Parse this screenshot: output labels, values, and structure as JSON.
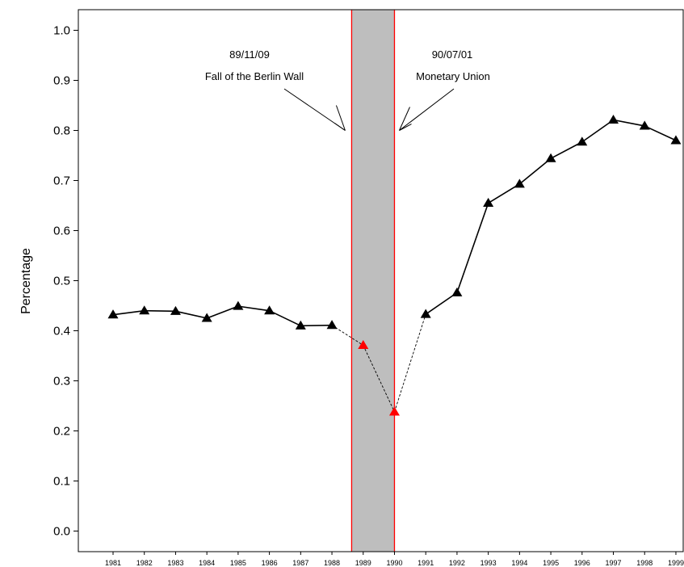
{
  "chart_data": {
    "type": "line",
    "title": "",
    "xlabel": "",
    "ylabel": "Percentage",
    "ylim": [
      -0.04,
      1.07
    ],
    "y_ticks": [
      "0.0",
      "0.1",
      "0.2",
      "0.3",
      "0.4",
      "0.5",
      "0.6",
      "0.7",
      "0.8",
      "0.9",
      "1.0"
    ],
    "grid": false,
    "x": [
      1981,
      1982,
      1983,
      1984,
      1985,
      1986,
      1987,
      1988,
      1989,
      1990,
      1991,
      1992,
      1993,
      1994,
      1995,
      1996,
      1997,
      1998,
      1999
    ],
    "values": [
      0.432,
      0.44,
      0.439,
      0.425,
      0.449,
      0.44,
      0.41,
      0.411,
      0.371,
      0.238,
      0.433,
      0.476,
      0.655,
      0.693,
      0.744,
      0.777,
      0.821,
      0.809,
      0.78
    ],
    "highlighted_points": [
      1989,
      1990
    ],
    "dashed_segments": [
      [
        1988,
        1989
      ],
      [
        1989,
        1990
      ],
      [
        1990,
        1991
      ]
    ],
    "shaded_region": {
      "from": 1988.63,
      "to": 1990
    },
    "annotations": [
      {
        "date": "89/11/09",
        "label": "Fall of the Berlin Wall",
        "event_x": 1988.63,
        "arrow_y": 0.8
      },
      {
        "date": "90/07/01",
        "label": "Monetary Union",
        "event_x": 1990,
        "arrow_y": 0.8
      }
    ],
    "colors": {
      "line": "#000000",
      "marker": "#000000",
      "highlight_marker": "#ff0000",
      "event_line": "#ff0000",
      "shade": "#bebebe"
    }
  }
}
